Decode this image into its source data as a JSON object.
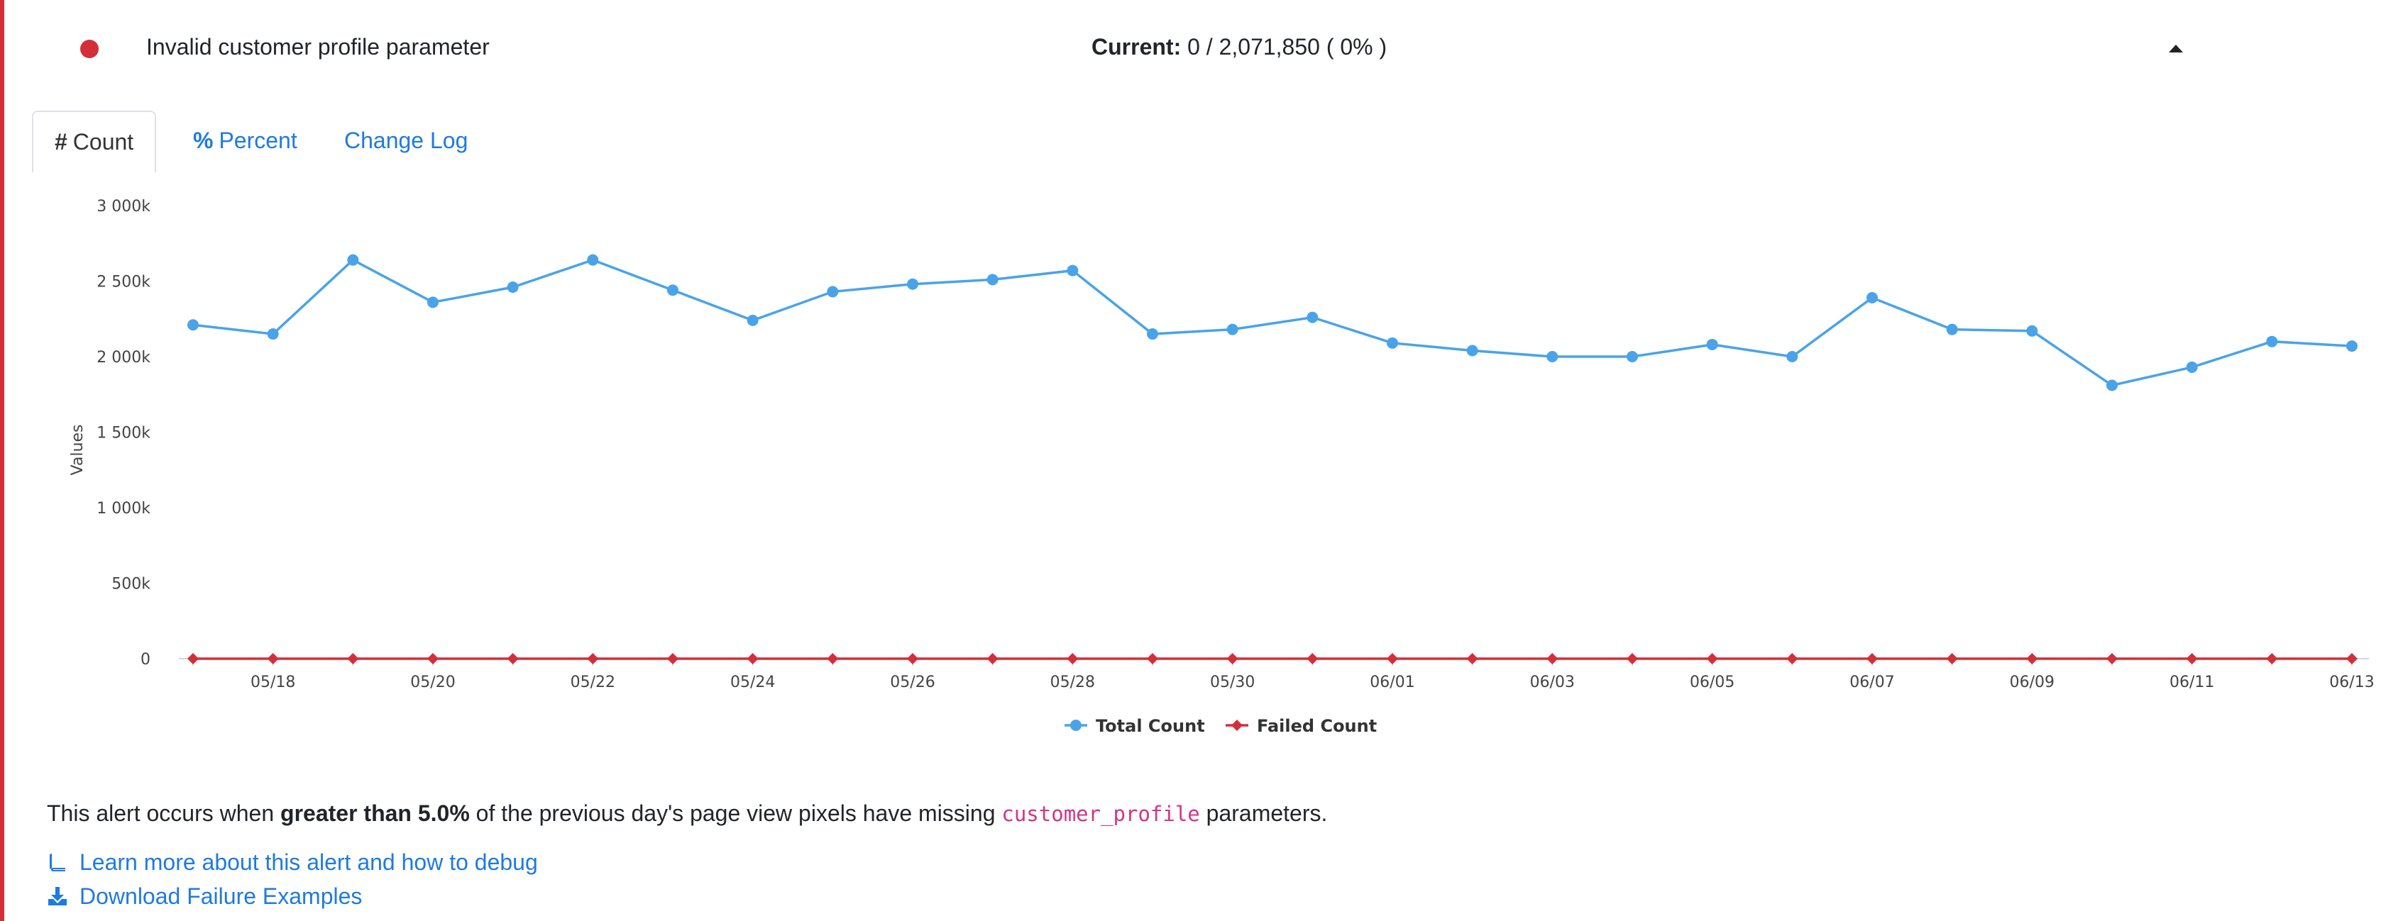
{
  "header": {
    "status_color": "#d32f38",
    "title": "Invalid customer profile parameter",
    "current_label": "Current:",
    "current_value": "0 / 2,071,850 ( 0% )",
    "collapse_icon": "caret-up-icon"
  },
  "tabs": [
    {
      "label": "Count",
      "icon": "#",
      "active": true
    },
    {
      "label": "Percent",
      "icon": "%",
      "active": false
    },
    {
      "label": "Change Log",
      "icon": "",
      "active": false
    }
  ],
  "chart_data": {
    "type": "line",
    "title": "",
    "xlabel": "",
    "ylabel": "Values",
    "ylim": [
      0,
      3000000
    ],
    "yticks": [
      0,
      500000,
      1000000,
      1500000,
      2000000,
      2500000,
      3000000
    ],
    "ytick_labels": [
      "0",
      "500k",
      "1 000k",
      "1 500k",
      "2 000k",
      "2 500k",
      "3 000k"
    ],
    "x": [
      "05/17",
      "05/18",
      "05/19",
      "05/20",
      "05/21",
      "05/22",
      "05/23",
      "05/24",
      "05/25",
      "05/26",
      "05/27",
      "05/28",
      "05/29",
      "05/30",
      "05/31",
      "06/01",
      "06/02",
      "06/03",
      "06/04",
      "06/05",
      "06/06",
      "06/07",
      "06/08",
      "06/09",
      "06/10",
      "06/11",
      "06/12",
      "06/13"
    ],
    "xtick_labels": [
      "05/18",
      "05/20",
      "05/22",
      "05/24",
      "05/26",
      "05/28",
      "05/30",
      "06/01",
      "06/03",
      "06/05",
      "06/07",
      "06/09",
      "06/11",
      "06/13"
    ],
    "series": [
      {
        "name": "Total Count",
        "color": "#4aa3e8",
        "marker": "circle",
        "values": [
          2210000,
          2150000,
          2640000,
          2360000,
          2460000,
          2640000,
          2440000,
          2240000,
          2430000,
          2480000,
          2510000,
          2570000,
          2150000,
          2180000,
          2260000,
          2090000,
          2040000,
          2000000,
          2000000,
          2080000,
          2000000,
          2390000,
          2180000,
          2170000,
          1810000,
          1930000,
          2100000,
          2070000
        ]
      },
      {
        "name": "Failed Count",
        "color": "#d32f38",
        "marker": "diamond",
        "values": [
          0,
          0,
          0,
          0,
          0,
          0,
          0,
          0,
          0,
          0,
          0,
          0,
          0,
          0,
          0,
          0,
          0,
          0,
          0,
          0,
          0,
          0,
          0,
          0,
          0,
          0,
          0,
          0
        ]
      }
    ],
    "legend": "bottom-center",
    "grid": false
  },
  "description": {
    "prefix": "This alert occurs when ",
    "emphasis": "greater than 5.0%",
    "middle": " of the previous day's page view pixels have missing ",
    "code": "customer_profile",
    "suffix": " parameters."
  },
  "links": {
    "learn_more": "Learn more about this alert and how to debug",
    "download": "Download Failure Examples"
  }
}
